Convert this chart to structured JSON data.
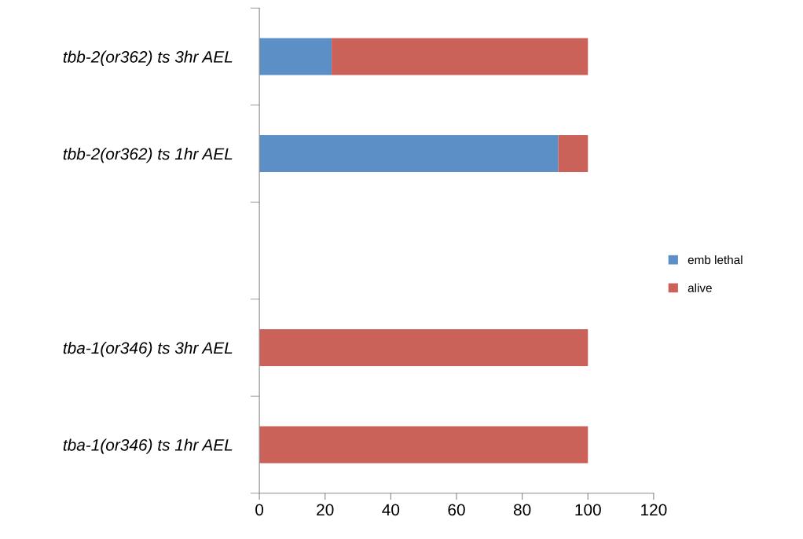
{
  "chart_data": {
    "type": "bar",
    "orientation": "horizontal",
    "stacked": true,
    "categories": [
      "tbb-2(or362) ts 3hr AEL",
      "tbb-2(or362) ts 1hr AEL",
      null,
      "tba-1(or346) ts 3hr AEL",
      "tba-1(or346) ts 1hr AEL"
    ],
    "series": [
      {
        "name": "emb lethal",
        "color": "#5b8fc6",
        "values": [
          22,
          91,
          null,
          0,
          0
        ]
      },
      {
        "name": "alive",
        "color": "#cb625a",
        "values": [
          78,
          9,
          null,
          100,
          100
        ]
      }
    ],
    "xlim": [
      0,
      120
    ],
    "xticks": [
      0,
      20,
      40,
      60,
      80,
      100,
      120
    ],
    "grid": false,
    "legend": "right"
  }
}
